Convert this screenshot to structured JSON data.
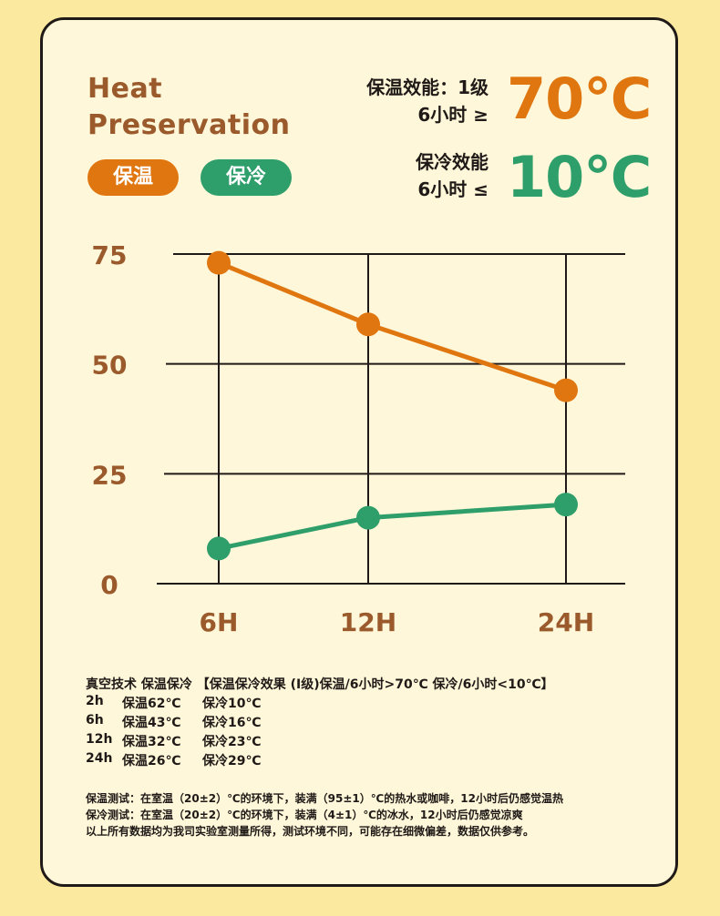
{
  "header": {
    "title_line1": "Heat",
    "title_line2": "Preservation",
    "tag_warm": "保温",
    "tag_cold": "保冷"
  },
  "specs": {
    "warm_label_line1": "保温效能：1级",
    "warm_label_line2": "6小时 ≥",
    "warm_value": "70℃",
    "cold_label_line1": "保冷效能",
    "cold_label_line2": "6小时 ≤",
    "cold_value": "10℃"
  },
  "colors": {
    "warm": "#e0760f",
    "cold": "#2e9e6b",
    "axis_text": "#9a5a2c",
    "background": "#fbe9a0",
    "card": "#fff7d9"
  },
  "chart_data": {
    "type": "line",
    "categories": [
      "6H",
      "12H",
      "24H"
    ],
    "series": [
      {
        "name": "保温",
        "values": [
          73,
          59,
          44
        ],
        "color": "#e0760f"
      },
      {
        "name": "保冷",
        "values": [
          8,
          15,
          18
        ],
        "color": "#2e9e6b"
      }
    ],
    "yticks": [
      0,
      25,
      50,
      75
    ],
    "ylim": [
      0,
      75
    ],
    "grid": true,
    "legend": "top-left"
  },
  "notes": {
    "heading": "真空技术 保温保冷 【保温保冷效果 (I级)保温/6小时>70℃ 保冷/6小时<10℃】",
    "rows": [
      {
        "time": "2h",
        "warm": "保温62℃",
        "cold": "保冷10℃"
      },
      {
        "time": "6h",
        "warm": "保温43℃",
        "cold": "保冷16℃"
      },
      {
        "time": "12h",
        "warm": "保温32℃",
        "cold": "保冷23℃"
      },
      {
        "time": "24h",
        "warm": "保温26℃",
        "cold": "保冷29℃"
      }
    ],
    "footnote1": "保温测试：在室温（20±2）℃的环境下，装满（95±1）℃的热水或咖啡，12小时后仍感觉温热",
    "footnote2": "保冷测试：在室温（20±2）℃的环境下，装满（4±1）℃的冰水，12小时后仍感觉凉爽",
    "footnote3": "以上所有数据均为我司实验室测量所得，测试环境不同，可能存在细微偏差，数据仅供参考。"
  }
}
